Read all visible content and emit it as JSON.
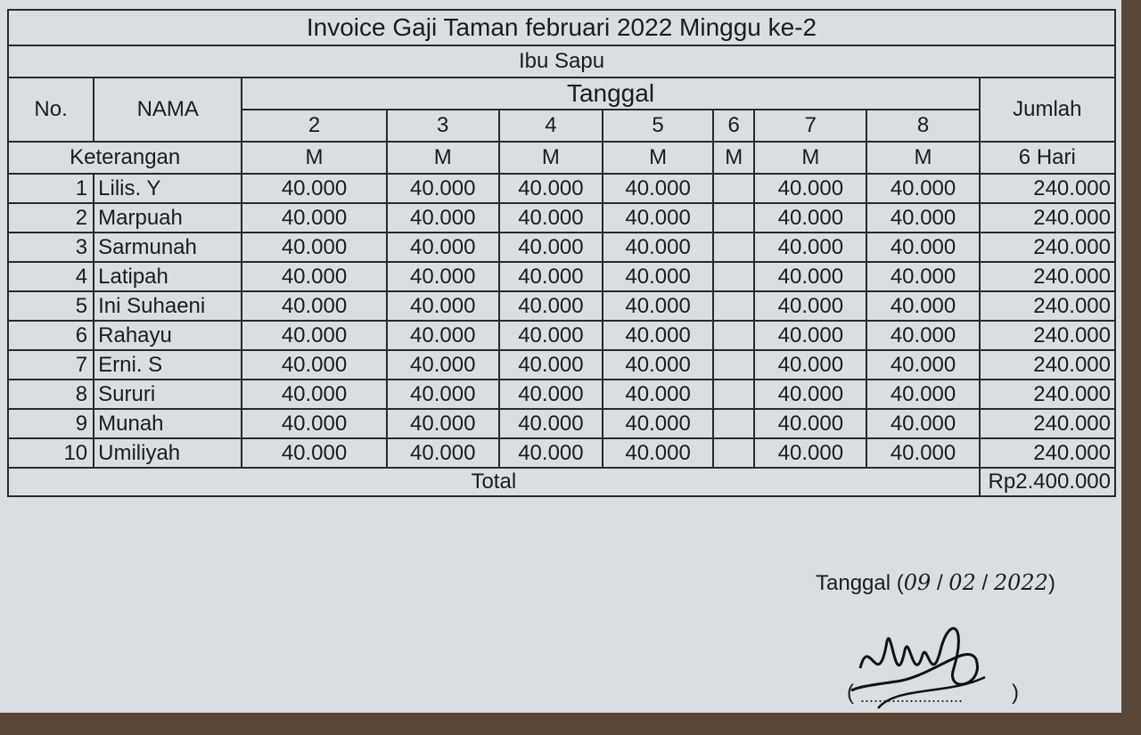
{
  "title": "Invoice Gaji Taman februari 2022 Minggu ke-2",
  "subtitle": "Ibu Sapu",
  "headers": {
    "no": "No.",
    "nama": "NAMA",
    "tanggal": "Tanggal",
    "jumlah": "Jumlah",
    "keterangan": "Keterangan",
    "jumlah_hari": "6 Hari"
  },
  "dates": [
    "2",
    "3",
    "4",
    "5",
    "6",
    "7",
    "8"
  ],
  "codes": [
    "M",
    "M",
    "M",
    "M",
    "M",
    "M",
    "M"
  ],
  "rows": [
    {
      "no": "1",
      "nama": "Lilis. Y",
      "values": [
        "40.000",
        "40.000",
        "40.000",
        "40.000",
        "",
        "40.000",
        "40.000"
      ],
      "jumlah": "240.000"
    },
    {
      "no": "2",
      "nama": "Marpuah",
      "values": [
        "40.000",
        "40.000",
        "40.000",
        "40.000",
        "",
        "40.000",
        "40.000"
      ],
      "jumlah": "240.000"
    },
    {
      "no": "3",
      "nama": "Sarmunah",
      "values": [
        "40.000",
        "40.000",
        "40.000",
        "40.000",
        "",
        "40.000",
        "40.000"
      ],
      "jumlah": "240.000"
    },
    {
      "no": "4",
      "nama": "Latipah",
      "values": [
        "40.000",
        "40.000",
        "40.000",
        "40.000",
        "",
        "40.000",
        "40.000"
      ],
      "jumlah": "240.000"
    },
    {
      "no": "5",
      "nama": "Ini Suhaeni",
      "values": [
        "40.000",
        "40.000",
        "40.000",
        "40.000",
        "",
        "40.000",
        "40.000"
      ],
      "jumlah": "240.000"
    },
    {
      "no": "6",
      "nama": "Rahayu",
      "values": [
        "40.000",
        "40.000",
        "40.000",
        "40.000",
        "",
        "40.000",
        "40.000"
      ],
      "jumlah": "240.000"
    },
    {
      "no": "7",
      "nama": "Erni. S",
      "values": [
        "40.000",
        "40.000",
        "40.000",
        "40.000",
        "",
        "40.000",
        "40.000"
      ],
      "jumlah": "240.000"
    },
    {
      "no": "8",
      "nama": "Sururi",
      "values": [
        "40.000",
        "40.000",
        "40.000",
        "40.000",
        "",
        "40.000",
        "40.000"
      ],
      "jumlah": "240.000"
    },
    {
      "no": "9",
      "nama": "Munah",
      "values": [
        "40.000",
        "40.000",
        "40.000",
        "40.000",
        "",
        "40.000",
        "40.000"
      ],
      "jumlah": "240.000"
    },
    {
      "no": "10",
      "nama": "Umiliyah",
      "values": [
        "40.000",
        "40.000",
        "40.000",
        "40.000",
        "",
        "40.000",
        "40.000"
      ],
      "jumlah": "240.000"
    }
  ],
  "total_label": "Total",
  "total_value": "Rp2.400.000",
  "footer": {
    "tanggal_label": "Tanggal (",
    "date_day": "09",
    "date_month": "02",
    "date_year": "2022",
    "close": ")"
  }
}
